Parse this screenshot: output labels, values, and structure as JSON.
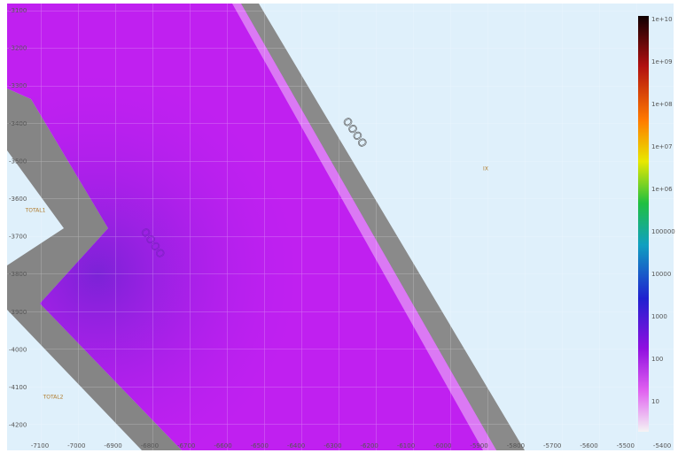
{
  "plot": {
    "y_axis_labels": [
      "-3100",
      "-3200",
      "-3300",
      "-3400",
      "-3500",
      "-3600",
      "-3700",
      "-3800",
      "-3900",
      "-4000",
      "-4100",
      "-4200"
    ],
    "x_axis_labels": [
      "-7100",
      "-7000",
      "-6900",
      "-6800",
      "-6700",
      "-6600",
      "-6500",
      "-6400",
      "-6300",
      "-6200",
      "-6100",
      "-6000",
      "-5900",
      "-5800",
      "-5700",
      "-5600",
      "-5500",
      "-5400"
    ],
    "annotations": [
      "TOTAL1",
      "TOTAL2",
      "IX",
      "OOOO",
      "OOOO"
    ]
  },
  "colorbar": {
    "labels": [
      "1e+10",
      "1e+09",
      "1e+08",
      "1e+07",
      "1e+06",
      "100000",
      "10000",
      "1000",
      "100",
      "10"
    ]
  }
}
